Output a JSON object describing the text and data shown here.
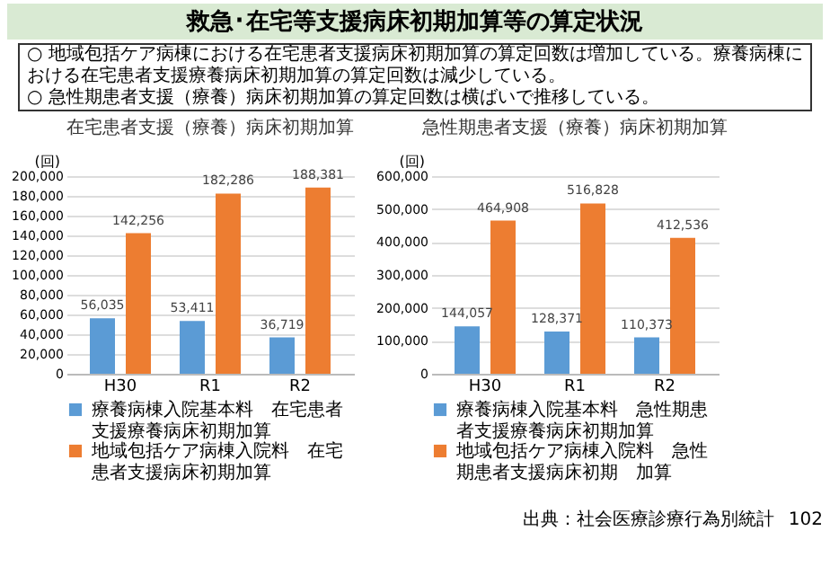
{
  "chart_data": [
    {
      "type": "other",
      "title": "救急･在宅等支援病床初期加算等の算定状況",
      "annotations": [
        "○ 地域包括ケア病棟における在宅患者支援病床初期加算の算定回数は増加している。療養病棟における在宅患者支援療養病床初期加算の算定回数は減少している。",
        "○ 急性期患者支援（療養）病床初期加算の算定回数は横ばいで推移している。"
      ]
    },
    {
      "type": "bar",
      "title": "在宅患者支援（療養）病床初期加算",
      "ylabel": "(回)",
      "categories": [
        "H30",
        "R1",
        "R2"
      ],
      "series": [
        {
          "name": "療養病棟入院基本料　在宅患者支援療養病床初期加算",
          "color": "#5b9bd5",
          "values": [
            56035,
            53411,
            36719
          ],
          "value_labels": [
            "56,035",
            "53,411",
            "36,719"
          ]
        },
        {
          "name": "地域包括ケア病棟入院料　在宅患者支援病床初期加算",
          "color": "#ed7d31",
          "values": [
            142256,
            182286,
            188381
          ],
          "value_labels": [
            "142,256",
            "182,286",
            "188,381"
          ]
        }
      ],
      "ylim": [
        0,
        200000
      ],
      "yticks": [
        0,
        {
          "value": 20000,
          "label": "20,000"
        },
        {
          "value": 40000,
          "label": "40,000"
        },
        {
          "value": 60000,
          "label": "60,000"
        },
        {
          "value": 80000,
          "label": "80,000"
        },
        {
          "value": 100000,
          "label": "100,000"
        },
        {
          "value": 120000,
          "label": "120,000"
        },
        {
          "value": 140000,
          "label": "140,000"
        },
        {
          "value": 160000,
          "label": "160,000"
        },
        {
          "value": 180000,
          "label": "180,000"
        },
        {
          "value": 200000,
          "label": "200,000"
        }
      ],
      "grid": "y",
      "legend": "bottom"
    },
    {
      "type": "bar",
      "title": "急性期患者支援（療養）病床初期加算",
      "ylabel": "(回)",
      "categories": [
        "H30",
        "R1",
        "R2"
      ],
      "series": [
        {
          "name": "療養病棟入院基本料　急性期患者支援療養病床初期加算",
          "color": "#5b9bd5",
          "values": [
            144057,
            128371,
            110373
          ],
          "value_labels": [
            "144,057",
            "128,371",
            "110,373"
          ]
        },
        {
          "name": "地域包括ケア病棟入院料　急性期患者支援病床初期　加算",
          "color": "#ed7d31",
          "values": [
            464908,
            516828,
            412536
          ],
          "value_labels": [
            "464,908",
            "516,828",
            "412,536"
          ]
        }
      ],
      "ylim": [
        0,
        600000
      ],
      "yticks": [
        0,
        {
          "value": 100000,
          "label": "100,000"
        },
        {
          "value": 200000,
          "label": "200,000"
        },
        {
          "value": 300000,
          "label": "300,000"
        },
        {
          "value": 400000,
          "label": "400,000"
        },
        {
          "value": 500000,
          "label": "500,000"
        },
        {
          "value": 600000,
          "label": "600,000"
        }
      ],
      "grid": "y",
      "legend": "bottom",
      "annotations": [
        "出典：社会医療診療行為別統計",
        "102"
      ]
    }
  ]
}
